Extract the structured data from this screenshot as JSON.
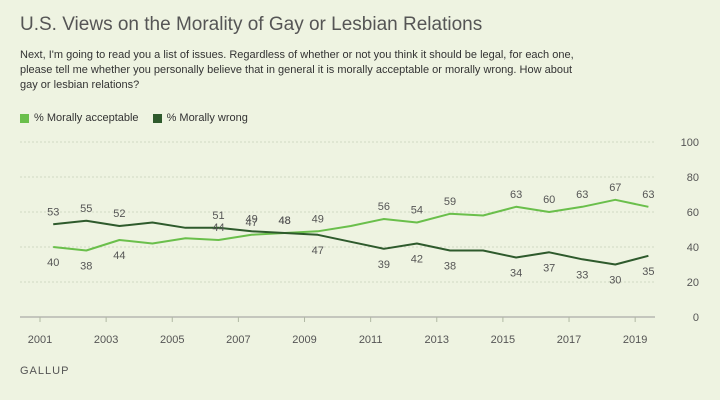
{
  "header": {
    "title": "U.S. Views on the Morality of Gay or Lesbian Relations",
    "subtitle": "Next, I'm going to read you a list of issues. Regardless of whether or not you think it should be legal, for each one, please tell me whether you personally believe that in general it is morally acceptable or morally wrong. How about gay or lesbian relations?"
  },
  "footer": {
    "source": "GALLUP"
  },
  "colors": {
    "acceptable": "#6abf4b",
    "wrong": "#2e5a2c",
    "grid": "#d0d8c2",
    "tick": "#b0b8a4"
  },
  "chart_data": {
    "type": "line",
    "title": "U.S. Views on the Morality of Gay or Lesbian Relations",
    "xlabel": "",
    "ylabel": "",
    "ylim": [
      0,
      100
    ],
    "xlim": [
      2001,
      2019.6
    ],
    "x": [
      2001.4,
      2002.4,
      2003.4,
      2004.4,
      2005.4,
      2006.4,
      2007.4,
      2008.4,
      2009.4,
      2010.4,
      2011.4,
      2012.4,
      2013.4,
      2014.4,
      2015.4,
      2016.4,
      2017.4,
      2018.4,
      2019.4
    ],
    "x_ticks": [
      2001,
      2003,
      2005,
      2007,
      2009,
      2011,
      2013,
      2015,
      2017,
      2019
    ],
    "y_ticks": [
      0,
      20,
      40,
      60,
      80,
      100
    ],
    "grid": true,
    "legend_position": "top-left",
    "series": [
      {
        "name": "% Morally acceptable",
        "color_key": "acceptable",
        "values": [
          40,
          38,
          44,
          42,
          45,
          44,
          47,
          48,
          49,
          52,
          56,
          54,
          59,
          58,
          63,
          60,
          63,
          67,
          63
        ],
        "label_indices": [
          0,
          1,
          2,
          5,
          6,
          7,
          8,
          10,
          11,
          12,
          14,
          15,
          16,
          17,
          18
        ],
        "label_above": [
          false,
          false,
          false,
          false,
          false,
          true,
          true,
          true,
          true,
          true,
          true,
          true,
          true,
          true,
          true,
          true,
          true,
          true,
          true
        ]
      },
      {
        "name": "% Morally wrong",
        "color_key": "wrong",
        "values": [
          53,
          55,
          52,
          54,
          51,
          51,
          49,
          48,
          47,
          43,
          39,
          42,
          38,
          38,
          34,
          37,
          33,
          30,
          35
        ],
        "label_indices": [
          0,
          1,
          2,
          5,
          6,
          7,
          8,
          10,
          11,
          12,
          14,
          15,
          16,
          17,
          18
        ],
        "label_above": [
          true,
          true,
          true,
          true,
          true,
          true,
          true,
          true,
          false,
          false,
          false,
          false,
          false,
          false,
          false,
          false,
          false,
          false,
          false
        ]
      }
    ]
  }
}
